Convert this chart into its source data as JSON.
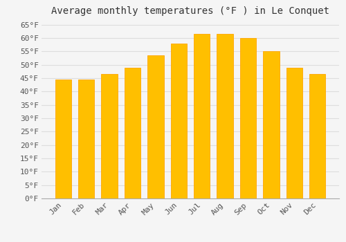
{
  "title": "Average monthly temperatures (°F ) in Le Conquet",
  "months": [
    "Jan",
    "Feb",
    "Mar",
    "Apr",
    "May",
    "Jun",
    "Jul",
    "Aug",
    "Sep",
    "Oct",
    "Nov",
    "Dec"
  ],
  "values": [
    44.5,
    44.5,
    46.5,
    49,
    53.5,
    58,
    61.5,
    61.5,
    60,
    55,
    49,
    46.5
  ],
  "bar_color": "#FFBF00",
  "bar_edge_color": "#FFA500",
  "ylim": [
    0,
    67
  ],
  "yticks": [
    0,
    5,
    10,
    15,
    20,
    25,
    30,
    35,
    40,
    45,
    50,
    55,
    60,
    65
  ],
  "ytick_labels": [
    "0°F",
    "5°F",
    "10°F",
    "15°F",
    "20°F",
    "25°F",
    "30°F",
    "35°F",
    "40°F",
    "45°F",
    "50°F",
    "55°F",
    "60°F",
    "65°F"
  ],
  "grid_color": "#dddddd",
  "bg_color": "#f5f5f5",
  "title_fontsize": 10,
  "tick_fontsize": 8,
  "font_family": "monospace"
}
